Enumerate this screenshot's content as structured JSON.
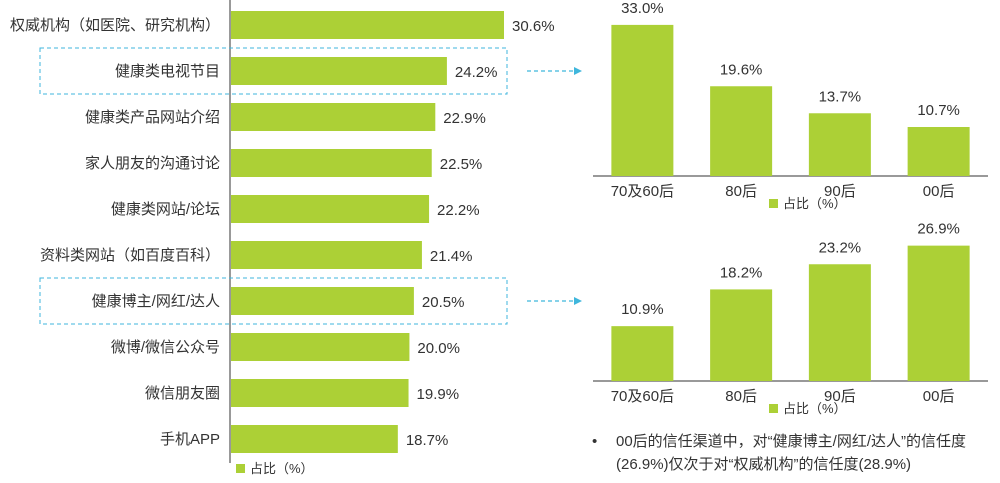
{
  "colors": {
    "bar": "#acd036",
    "axis": "#333333",
    "highlight": "#3fb6dc",
    "text": "#333333"
  },
  "chart_data": [
    {
      "type": "bar",
      "orientation": "horizontal",
      "categories": [
        "权威机构（如医院、研究机构）",
        "健康类电视节目",
        "健康类产品网站介绍",
        "家人朋友的沟通讨论",
        "健康类网站/论坛",
        "资料类网站（如百度百科）",
        "健康博主/网红/达人",
        "微博/微信公众号",
        "微信朋友圈",
        "手机APP"
      ],
      "values": [
        30.6,
        24.2,
        22.9,
        22.5,
        22.2,
        21.4,
        20.5,
        20.0,
        19.9,
        18.7
      ],
      "value_labels": [
        "30.6%",
        "24.2%",
        "22.9%",
        "22.5%",
        "22.2%",
        "21.4%",
        "20.5%",
        "20.0%",
        "19.9%",
        "18.7%"
      ],
      "highlighted": [
        "健康类电视节目",
        "健康博主/网红/达人"
      ],
      "legend": "占比（%）",
      "xlim": [
        0,
        35
      ]
    },
    {
      "type": "bar",
      "categories": [
        "70及60后",
        "80后",
        "90后",
        "00后"
      ],
      "values": [
        33.0,
        19.6,
        13.7,
        10.7
      ],
      "value_labels": [
        "33.0%",
        "19.6%",
        "13.7%",
        "10.7%"
      ],
      "legend": "占比（%）",
      "ylim": [
        0,
        38
      ]
    },
    {
      "type": "bar",
      "categories": [
        "70及60后",
        "80后",
        "90后",
        "00后"
      ],
      "values": [
        10.9,
        18.2,
        23.2,
        26.9
      ],
      "value_labels": [
        "10.9%",
        "18.2%",
        "23.2%",
        "26.9%"
      ],
      "legend": "占比（%）",
      "ylim": [
        0,
        31
      ]
    }
  ],
  "note": {
    "bullet": "•",
    "text": "00后的信任渠道中，对“健康博主/网红/达人”的信任度(26.9%)仅次于对“权威机构”的信任度(28.9%)"
  }
}
